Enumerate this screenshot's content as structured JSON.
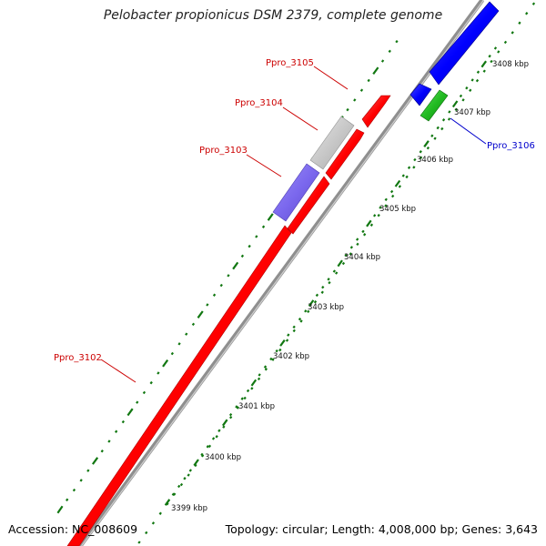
{
  "title": "Pelobacter propionicus DSM 2379, complete genome",
  "footer": {
    "accession": "Accession: NC_008609",
    "summary": "Topology: circular; Length: 4,008,000 bp; Genes: 3,643"
  },
  "scale_ticks": [
    "3399 kbp",
    "3400 kbp",
    "3401 kbp",
    "3402 kbp",
    "3403 kbp",
    "3404 kbp",
    "3405 kbp",
    "3406 kbp",
    "3407 kbp",
    "3408 kbp"
  ],
  "genes": [
    {
      "name": "Ppro_3102",
      "color": "#ff0000",
      "strand": "forward"
    },
    {
      "name": "Ppro_3103",
      "color": "#7b68ee",
      "strand": "forward"
    },
    {
      "name": "Ppro_3104",
      "color": "#c8c8c8",
      "strand": "forward"
    },
    {
      "name": "Ppro_3105",
      "color": "#ff0000",
      "strand": "forward"
    },
    {
      "name": "Ppro_3106",
      "color": "#0000ff",
      "strand": "reverse"
    }
  ],
  "colors": {
    "red": "#ff0000",
    "blue": "#0000ff",
    "green": "#22bb22",
    "gray_backbone": "#808080",
    "tick_green": "#117711",
    "label_red": "#cc0000",
    "label_blue": "#0000cc"
  }
}
